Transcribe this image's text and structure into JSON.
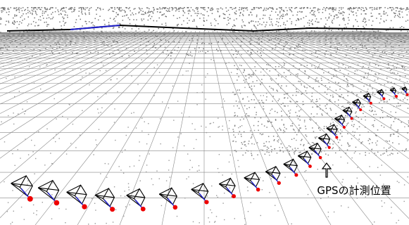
{
  "annotation": "GPSの計測位置"
}
